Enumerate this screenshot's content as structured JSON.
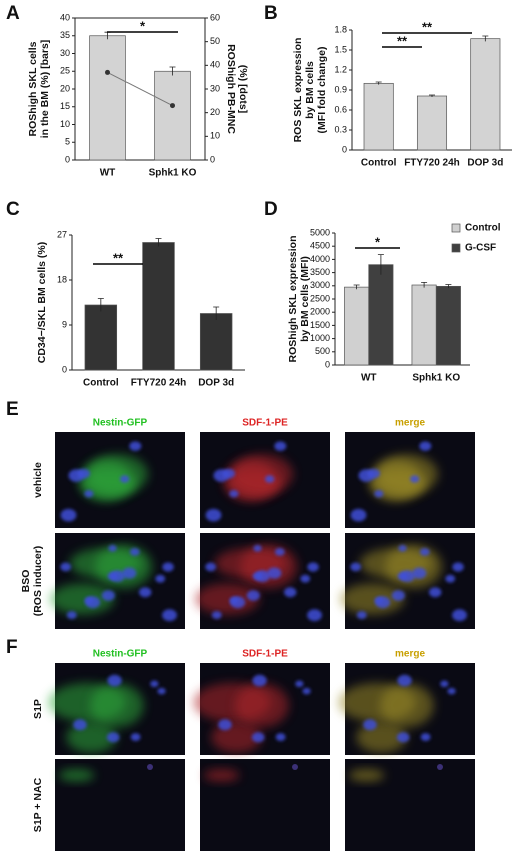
{
  "chart_data": [
    {
      "type": "bar",
      "panel": "A",
      "categories": [
        "WT",
        "Sphk1 KO"
      ],
      "ylabel": [
        "ROShigh SKL cells",
        "in the BM (%) [bars]"
      ],
      "y2label": [
        "ROShigh PB-MNC",
        "(%) [dots]"
      ],
      "ylim": [
        0,
        40
      ],
      "yticks": [
        0,
        5,
        10,
        15,
        20,
        25,
        30,
        35,
        40
      ],
      "y2lim": [
        0,
        60
      ],
      "y2ticks": [
        0,
        10,
        20,
        30,
        40,
        50,
        60
      ],
      "series": [
        {
          "color": "#d3d3d3",
          "values": [
            35,
            25
          ],
          "errors": [
            1,
            1.2
          ]
        },
        {
          "type": "line",
          "axis": "y2",
          "color": "#333333",
          "values": [
            37,
            23
          ]
        }
      ],
      "annotations": [
        "*"
      ]
    },
    {
      "type": "bar",
      "panel": "B",
      "categories": [
        "Control",
        "FTY720 24h",
        "DOP 3d"
      ],
      "ylabel": [
        "ROS SKL expression",
        "by BM cells",
        "(MFI fold change)"
      ],
      "ylim": [
        0,
        1.8
      ],
      "yticks": [
        0,
        0.3,
        0.6,
        0.9,
        1.2,
        1.5,
        1.8
      ],
      "series": [
        {
          "color": "#d3d3d3",
          "values": [
            1.0,
            0.81,
            1.67
          ],
          "errors": [
            0.02,
            0.015,
            0.04
          ]
        }
      ],
      "annotations": [
        "**",
        "**"
      ]
    },
    {
      "type": "bar",
      "panel": "C",
      "categories": [
        "Control",
        "FTY720 24h",
        "DOP 3d"
      ],
      "ylabel": [
        "CD34−/SKL BM cells (%)"
      ],
      "ylim": [
        0,
        27
      ],
      "yticks": [
        0,
        9,
        18,
        27
      ],
      "series": [
        {
          "color": "#333333",
          "values": [
            13,
            25.5,
            11.3
          ],
          "errors": [
            1.3,
            0.8,
            1.3
          ]
        }
      ],
      "annotations": [
        "**"
      ]
    },
    {
      "type": "bar",
      "panel": "D",
      "categories": [
        "WT",
        "Sphk1 KO"
      ],
      "ylabel": [
        "ROShigh SKL expression",
        "by BM cells (MFI)"
      ],
      "ylim": [
        0,
        5000
      ],
      "yticks": [
        0,
        500,
        1000,
        1500,
        2000,
        2500,
        3000,
        3500,
        4000,
        4500,
        5000
      ],
      "legend": "upper right",
      "series": [
        {
          "name": "Control",
          "color": "#d0d0d0",
          "values": [
            2950,
            3030
          ],
          "errors": [
            80,
            100
          ]
        },
        {
          "name": "G-CSF",
          "color": "#404040",
          "values": [
            3800,
            2980
          ],
          "errors": [
            380,
            70
          ]
        }
      ],
      "annotations": [
        "*"
      ]
    }
  ],
  "image_panels": [
    {
      "panel": "E",
      "columns": [
        {
          "label": "Nestin-GFP",
          "color": "#22c022"
        },
        {
          "label": "SDF-1-PE",
          "color": "#dd2222"
        },
        {
          "label": "merge",
          "color": "#c8a000"
        }
      ],
      "rows": [
        [
          "vehicle"
        ],
        [
          "BSO",
          "(ROS inducer)"
        ]
      ]
    },
    {
      "panel": "F",
      "columns": [
        {
          "label": "Nestin-GFP",
          "color": "#22c022"
        },
        {
          "label": "SDF-1-PE",
          "color": "#dd2222"
        },
        {
          "label": "merge",
          "color": "#c8a000"
        }
      ],
      "rows": [
        [
          "S1P"
        ],
        [
          "S1P + NAC"
        ]
      ]
    }
  ]
}
